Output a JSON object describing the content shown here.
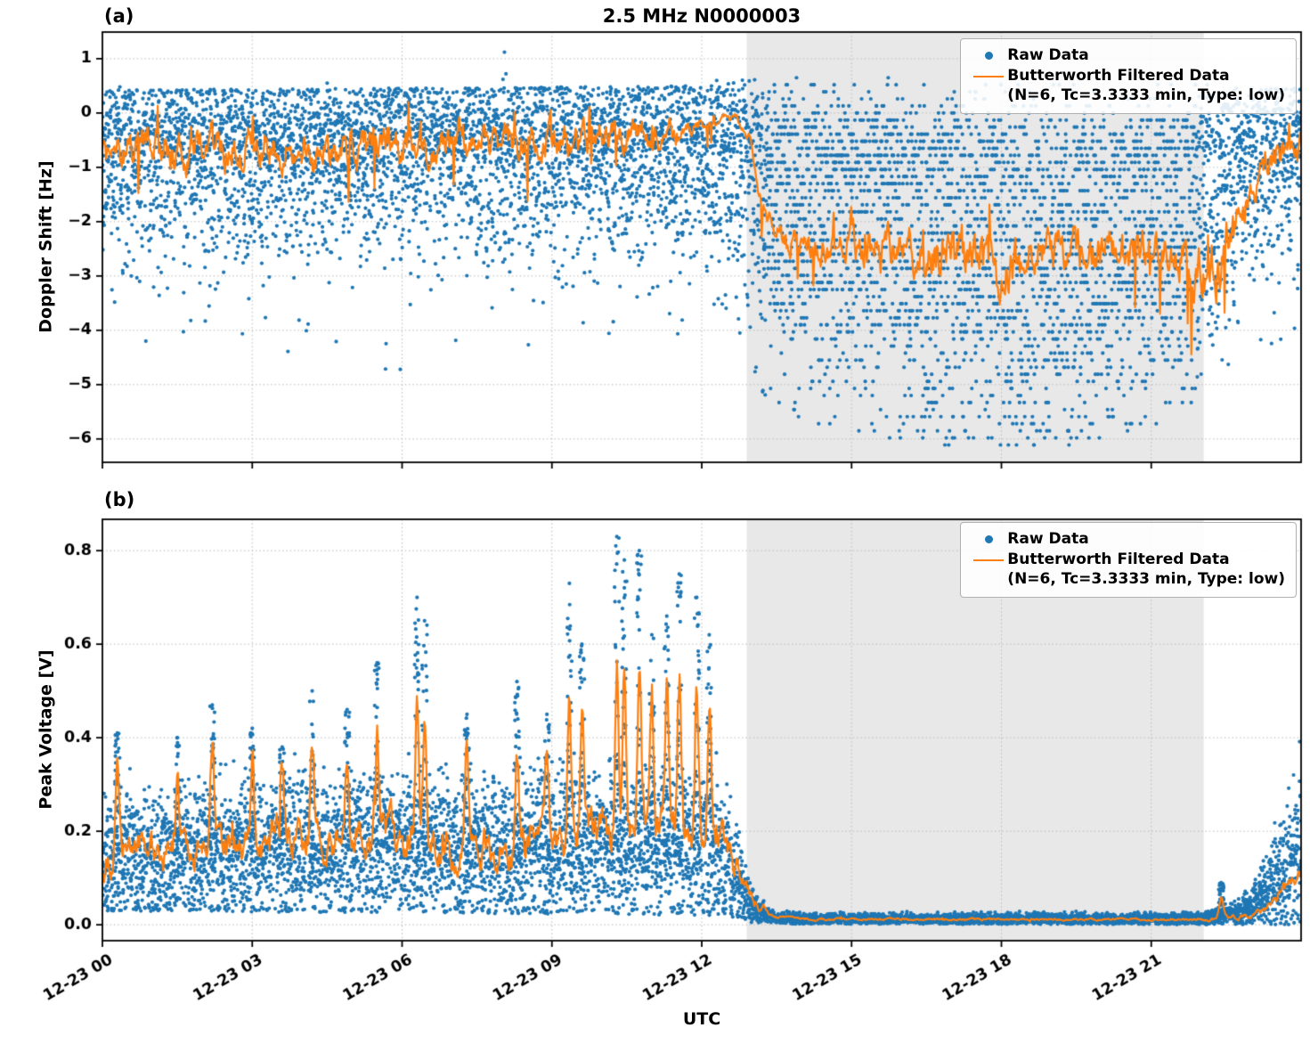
{
  "figure": {
    "colors": {
      "raw": "#1f77b4",
      "filtered": "#ff7f0e",
      "shade": "#e8e8e8",
      "grid": "#bababa",
      "text": "#000000"
    }
  },
  "chart_data": [
    {
      "type": "scatter",
      "panel": "(a)",
      "title": "2.5 MHz N0000003",
      "ylabel": "Doppler Shift [Hz]",
      "xlabel": "",
      "ylim": [
        -6.43,
        1.49
      ],
      "yticks": {
        "values": [
          1,
          0,
          -1,
          -2,
          -3,
          -4,
          -5,
          -6
        ],
        "labels": [
          "1",
          "0",
          "−1",
          "−2",
          "−3",
          "−4",
          "−5",
          "−6"
        ]
      },
      "xlim_hours": [
        0,
        24
      ],
      "xticks": {
        "hours": [
          0,
          3,
          6,
          9,
          12,
          15,
          18,
          21
        ],
        "labels": [
          "12-23 00",
          "12-23 03",
          "12-23 06",
          "12-23 09",
          "12-23 12",
          "12-23 15",
          "12-23 18",
          "12-23 21"
        ],
        "show_labels": false
      },
      "grid": "dotted",
      "shaded_region_hours": [
        12.9,
        22.05
      ],
      "legend": {
        "position": "upper right",
        "items": [
          {
            "label": "Raw Data",
            "marker": "dot",
            "color_key": "raw"
          },
          {
            "label": "Butterworth Filtered Data",
            "sublabel": "(N=6, Tc=3.3333 min, Type: low)",
            "marker": "line",
            "color_key": "filtered"
          }
        ]
      },
      "series": {
        "raw_scatter": {
          "columns": 2600,
          "points_per_column": 3,
          "center_keys": [
            [
              0,
              -1.1
            ],
            [
              12.5,
              -1.05
            ],
            [
              13.0,
              -1.5
            ],
            [
              13.6,
              -2.3
            ],
            [
              15,
              -2.5
            ],
            [
              17,
              -2.8
            ],
            [
              19,
              -2.95
            ],
            [
              20.5,
              -2.75
            ],
            [
              21.5,
              -2.5
            ],
            [
              22.2,
              -2.1
            ],
            [
              22.8,
              -1.7
            ],
            [
              23.3,
              -1.25
            ],
            [
              24,
              -1.0
            ]
          ],
          "sd_keys": [
            [
              0,
              0.8
            ],
            [
              12.6,
              0.8
            ],
            [
              13.6,
              1.3
            ],
            [
              17,
              1.45
            ],
            [
              19,
              1.5
            ],
            [
              21.5,
              1.3
            ],
            [
              22.5,
              1.05
            ],
            [
              23.2,
              0.85
            ],
            [
              24,
              0.8
            ]
          ],
          "tail_prob": 0.05,
          "top_band_prob_keys": [
            [
              0,
              0.45
            ],
            [
              12.8,
              0.45
            ],
            [
              13.4,
              0.3
            ],
            [
              16,
              0.3
            ],
            [
              18,
              0.22
            ],
            [
              21,
              0.28
            ],
            [
              22.5,
              0.4
            ],
            [
              24,
              0.45
            ]
          ],
          "top_band_center_keys": [
            [
              0,
              -0.25
            ],
            [
              12.8,
              -0.2
            ],
            [
              13.4,
              -0.55
            ],
            [
              18,
              -0.8
            ],
            [
              21.5,
              -0.6
            ],
            [
              23,
              -0.35
            ],
            [
              24,
              -0.3
            ]
          ],
          "top_band_sd": 0.45,
          "ymax_keys": [
            [
              0,
              0.42
            ],
            [
              12.4,
              0.5
            ],
            [
              12.9,
              0.65
            ],
            [
              13.6,
              0.6
            ],
            [
              16,
              0.62
            ],
            [
              21.5,
              0.6
            ],
            [
              22.3,
              0.5
            ],
            [
              24,
              0.45
            ]
          ],
          "ymin_keys": [
            [
              0,
              -4.7
            ],
            [
              12.8,
              -4.8
            ],
            [
              13.6,
              -5.6
            ],
            [
              16,
              -6.05
            ],
            [
              17.5,
              -6.15
            ],
            [
              20,
              -6.05
            ],
            [
              21.5,
              -5.6
            ],
            [
              22.3,
              -5.0
            ],
            [
              23,
              -4.4
            ],
            [
              24,
              -4.2
            ]
          ],
          "quantize": {
            "h_range": [
              13.3,
              21.9
            ],
            "step": 0.13
          }
        },
        "outliers": [
          [
            8.05,
            1.12
          ],
          [
            8.08,
            0.72
          ],
          [
            8.02,
            0.62
          ],
          [
            4.5,
            0.55
          ],
          [
            0.35,
            0.48
          ],
          [
            12.3,
            0.6
          ]
        ],
        "filtered_line": {
          "samples": 1300,
          "base_keys": [
            [
              0,
              -0.6
            ],
            [
              1.5,
              -0.75
            ],
            [
              3,
              -0.65
            ],
            [
              4.5,
              -0.72
            ],
            [
              6,
              -0.6
            ],
            [
              7.5,
              -0.55
            ],
            [
              9,
              -0.5
            ],
            [
              10.5,
              -0.45
            ],
            [
              11.5,
              -0.35
            ],
            [
              12.2,
              -0.2
            ],
            [
              12.7,
              -0.08
            ],
            [
              12.95,
              -0.5
            ],
            [
              13.2,
              -1.6
            ],
            [
              13.5,
              -2.3
            ],
            [
              14,
              -2.45
            ],
            [
              15,
              -2.5
            ],
            [
              16,
              -2.6
            ],
            [
              17,
              -2.7
            ],
            [
              18,
              -2.8
            ],
            [
              18.8,
              -2.75
            ],
            [
              20,
              -2.6
            ],
            [
              21,
              -2.55
            ],
            [
              21.8,
              -2.6
            ],
            [
              22.2,
              -2.9
            ],
            [
              22.6,
              -2.3
            ],
            [
              23,
              -1.3
            ],
            [
              23.4,
              -0.85
            ],
            [
              24,
              -0.5
            ]
          ],
          "amp_keys": [
            [
              0,
              0.55
            ],
            [
              6,
              0.55
            ],
            [
              9,
              0.5
            ],
            [
              11.5,
              0.35
            ],
            [
              12.3,
              0.15
            ],
            [
              12.8,
              0.1
            ],
            [
              13.2,
              0.3
            ],
            [
              13.6,
              0.45
            ],
            [
              15,
              0.5
            ],
            [
              16.5,
              0.7
            ],
            [
              17.5,
              0.85
            ],
            [
              18.5,
              0.85
            ],
            [
              19.5,
              0.65
            ],
            [
              21,
              0.55
            ],
            [
              21.8,
              0.7
            ],
            [
              22.3,
              0.85
            ],
            [
              22.8,
              0.6
            ],
            [
              23.3,
              0.45
            ],
            [
              24,
              0.5
            ]
          ],
          "spike_prob": 0.012,
          "spike_scale": 1.7
        }
      }
    },
    {
      "type": "scatter",
      "panel": "(b)",
      "title": "",
      "ylabel": "Peak Voltage [V]",
      "xlabel": "UTC",
      "ylim": [
        -0.034,
        0.867
      ],
      "yticks": {
        "values": [
          0.8,
          0.6,
          0.4,
          0.2,
          0.0
        ],
        "labels": [
          "0.8",
          "0.6",
          "0.4",
          "0.2",
          "0.0"
        ]
      },
      "xlim_hours": [
        0,
        24
      ],
      "xticks": {
        "hours": [
          0,
          3,
          6,
          9,
          12,
          15,
          18,
          21
        ],
        "labels": [
          "12-23 00",
          "12-23 03",
          "12-23 06",
          "12-23 09",
          "12-23 12",
          "12-23 15",
          "12-23 18",
          "12-23 21"
        ],
        "show_labels": true
      },
      "grid": "dotted",
      "shaded_region_hours": [
        12.9,
        22.05
      ],
      "legend": {
        "position": "upper right",
        "items": [
          {
            "label": "Raw Data",
            "marker": "dot",
            "color_key": "raw"
          },
          {
            "label": "Butterworth Filtered Data",
            "sublabel": "(N=6, Tc=3.3333 min, Type: low)",
            "marker": "line",
            "color_key": "filtered"
          }
        ]
      },
      "series": {
        "raw_scatter": {
          "columns": 2600,
          "points_per_column": 3,
          "center_keys": [
            [
              0,
              0.14
            ],
            [
              1,
              0.15
            ],
            [
              2,
              0.16
            ],
            [
              4,
              0.17
            ],
            [
              6,
              0.17
            ],
            [
              8,
              0.16
            ],
            [
              10,
              0.17
            ],
            [
              11.5,
              0.18
            ],
            [
              12.3,
              0.16
            ],
            [
              12.7,
              0.1
            ],
            [
              13.0,
              0.04
            ],
            [
              13.4,
              0.016
            ],
            [
              14,
              0.012
            ],
            [
              21.5,
              0.012
            ],
            [
              22.3,
              0.015
            ],
            [
              22.9,
              0.03
            ],
            [
              23.3,
              0.07
            ],
            [
              23.7,
              0.12
            ],
            [
              24,
              0.16
            ]
          ],
          "sd_keys": [
            [
              0,
              0.07
            ],
            [
              12.3,
              0.08
            ],
            [
              12.7,
              0.05
            ],
            [
              13.0,
              0.02
            ],
            [
              13.4,
              0.006
            ],
            [
              21.8,
              0.006
            ],
            [
              22.6,
              0.01
            ],
            [
              23.2,
              0.035
            ],
            [
              23.7,
              0.07
            ],
            [
              24,
              0.1
            ]
          ],
          "ymax_keys": [
            [
              0,
              0.52
            ],
            [
              12.5,
              0.55
            ],
            [
              13.2,
              0.1
            ],
            [
              13.6,
              0.035
            ],
            [
              21.8,
              0.035
            ],
            [
              22.4,
              0.1
            ],
            [
              23,
              0.2
            ],
            [
              23.5,
              0.35
            ],
            [
              24,
              0.46
            ]
          ],
          "clamp_min_keys": [
            [
              0,
              0.03
            ],
            [
              12.5,
              0.02
            ],
            [
              13.1,
              0.002
            ],
            [
              24,
              0.0
            ]
          ],
          "ymin": 0
        },
        "spikes": [
          [
            0.3,
            0.41
          ],
          [
            1.5,
            0.4
          ],
          [
            2.2,
            0.47
          ],
          [
            3.0,
            0.42
          ],
          [
            3.6,
            0.38
          ],
          [
            4.2,
            0.5
          ],
          [
            4.9,
            0.46
          ],
          [
            5.5,
            0.56
          ],
          [
            6.3,
            0.7
          ],
          [
            6.45,
            0.65
          ],
          [
            7.3,
            0.45
          ],
          [
            8.3,
            0.52
          ],
          [
            8.9,
            0.45
          ],
          [
            9.35,
            0.73
          ],
          [
            9.6,
            0.6
          ],
          [
            10.3,
            0.83
          ],
          [
            10.45,
            0.78
          ],
          [
            10.75,
            0.8
          ],
          [
            11.0,
            0.62
          ],
          [
            11.3,
            0.66
          ],
          [
            11.55,
            0.75
          ],
          [
            11.9,
            0.7
          ],
          [
            12.15,
            0.62
          ],
          [
            22.4,
            0.09
          ]
        ],
        "filtered_line": {
          "samples": 1300,
          "base_keys": [
            [
              0,
              0.13
            ],
            [
              0.5,
              0.17
            ],
            [
              1,
              0.14
            ],
            [
              2,
              0.18
            ],
            [
              3,
              0.16
            ],
            [
              4,
              0.19
            ],
            [
              5,
              0.17
            ],
            [
              6,
              0.2
            ],
            [
              7,
              0.17
            ],
            [
              8,
              0.18
            ],
            [
              9,
              0.2
            ],
            [
              10,
              0.2
            ],
            [
              10.5,
              0.22
            ],
            [
              11,
              0.21
            ],
            [
              11.5,
              0.22
            ],
            [
              12,
              0.21
            ],
            [
              12.4,
              0.18
            ],
            [
              12.8,
              0.1
            ],
            [
              13.1,
              0.045
            ],
            [
              13.5,
              0.018
            ],
            [
              14,
              0.012
            ],
            [
              21.5,
              0.011
            ],
            [
              22.0,
              0.012
            ],
            [
              23,
              0.018
            ],
            [
              23.3,
              0.04
            ],
            [
              23.6,
              0.065
            ],
            [
              23.85,
              0.095
            ],
            [
              24,
              0.12
            ]
          ],
          "amp_keys": [
            [
              0,
              0.06
            ],
            [
              12,
              0.07
            ],
            [
              12.5,
              0.05
            ],
            [
              13,
              0.02
            ],
            [
              13.5,
              0.004
            ],
            [
              21.8,
              0.003
            ],
            [
              22.4,
              0.008
            ],
            [
              23,
              0.008
            ],
            [
              23.4,
              0.018
            ],
            [
              24,
              0.028
            ]
          ],
          "spike_gain": 0.45,
          "spike_width": 0.05,
          "clamp_min": 0.004,
          "spike_prob": 0.004,
          "spike_scale": 1.2
        }
      }
    }
  ]
}
